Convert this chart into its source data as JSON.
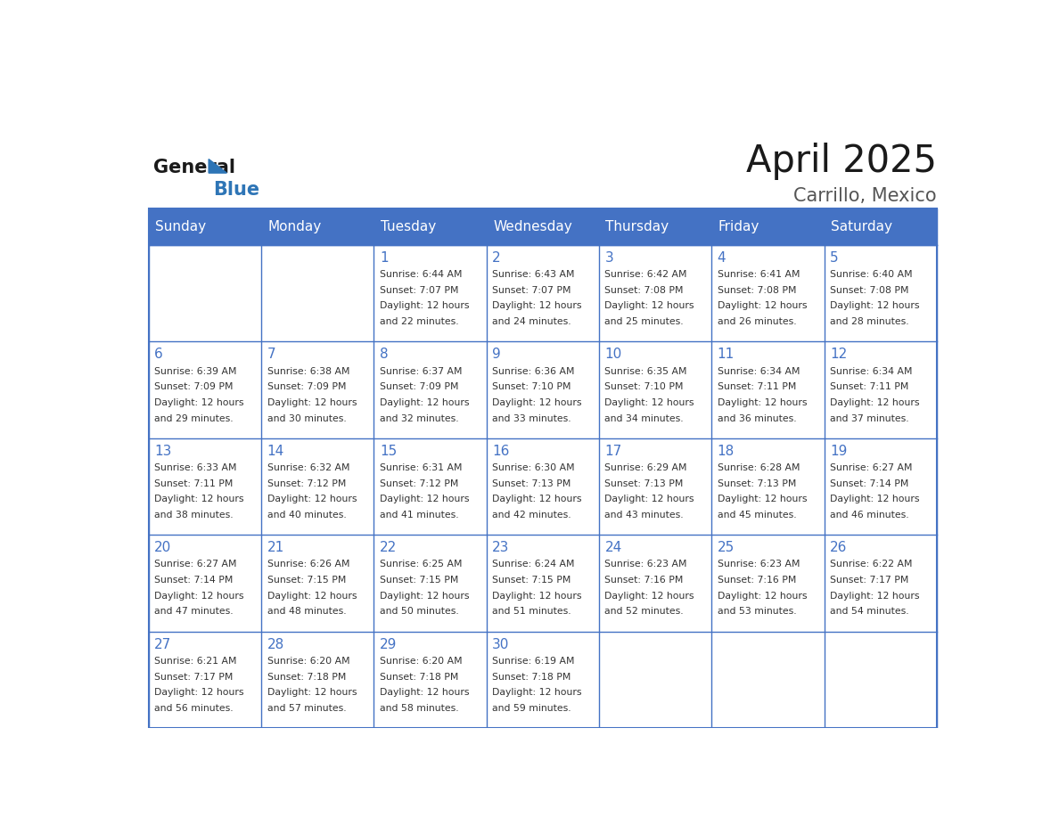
{
  "title": "April 2025",
  "subtitle": "Carrillo, Mexico",
  "header_color": "#4472C4",
  "header_text_color": "#FFFFFF",
  "border_color": "#4472C4",
  "day_number_color": "#4472C4",
  "text_color": "#333333",
  "title_color": "#1a1a1a",
  "subtitle_color": "#555555",
  "logo_black_color": "#1a1a1a",
  "logo_blue_color": "#2E75B6",
  "day_names": [
    "Sunday",
    "Monday",
    "Tuesday",
    "Wednesday",
    "Thursday",
    "Friday",
    "Saturday"
  ],
  "calendar": [
    [
      {
        "day": "",
        "sunrise": "",
        "sunset": "",
        "daylight": ""
      },
      {
        "day": "",
        "sunrise": "",
        "sunset": "",
        "daylight": ""
      },
      {
        "day": "1",
        "sunrise": "Sunrise: 6:44 AM",
        "sunset": "Sunset: 7:07 PM",
        "daylight": "Daylight: 12 hours\nand 22 minutes."
      },
      {
        "day": "2",
        "sunrise": "Sunrise: 6:43 AM",
        "sunset": "Sunset: 7:07 PM",
        "daylight": "Daylight: 12 hours\nand 24 minutes."
      },
      {
        "day": "3",
        "sunrise": "Sunrise: 6:42 AM",
        "sunset": "Sunset: 7:08 PM",
        "daylight": "Daylight: 12 hours\nand 25 minutes."
      },
      {
        "day": "4",
        "sunrise": "Sunrise: 6:41 AM",
        "sunset": "Sunset: 7:08 PM",
        "daylight": "Daylight: 12 hours\nand 26 minutes."
      },
      {
        "day": "5",
        "sunrise": "Sunrise: 6:40 AM",
        "sunset": "Sunset: 7:08 PM",
        "daylight": "Daylight: 12 hours\nand 28 minutes."
      }
    ],
    [
      {
        "day": "6",
        "sunrise": "Sunrise: 6:39 AM",
        "sunset": "Sunset: 7:09 PM",
        "daylight": "Daylight: 12 hours\nand 29 minutes."
      },
      {
        "day": "7",
        "sunrise": "Sunrise: 6:38 AM",
        "sunset": "Sunset: 7:09 PM",
        "daylight": "Daylight: 12 hours\nand 30 minutes."
      },
      {
        "day": "8",
        "sunrise": "Sunrise: 6:37 AM",
        "sunset": "Sunset: 7:09 PM",
        "daylight": "Daylight: 12 hours\nand 32 minutes."
      },
      {
        "day": "9",
        "sunrise": "Sunrise: 6:36 AM",
        "sunset": "Sunset: 7:10 PM",
        "daylight": "Daylight: 12 hours\nand 33 minutes."
      },
      {
        "day": "10",
        "sunrise": "Sunrise: 6:35 AM",
        "sunset": "Sunset: 7:10 PM",
        "daylight": "Daylight: 12 hours\nand 34 minutes."
      },
      {
        "day": "11",
        "sunrise": "Sunrise: 6:34 AM",
        "sunset": "Sunset: 7:11 PM",
        "daylight": "Daylight: 12 hours\nand 36 minutes."
      },
      {
        "day": "12",
        "sunrise": "Sunrise: 6:34 AM",
        "sunset": "Sunset: 7:11 PM",
        "daylight": "Daylight: 12 hours\nand 37 minutes."
      }
    ],
    [
      {
        "day": "13",
        "sunrise": "Sunrise: 6:33 AM",
        "sunset": "Sunset: 7:11 PM",
        "daylight": "Daylight: 12 hours\nand 38 minutes."
      },
      {
        "day": "14",
        "sunrise": "Sunrise: 6:32 AM",
        "sunset": "Sunset: 7:12 PM",
        "daylight": "Daylight: 12 hours\nand 40 minutes."
      },
      {
        "day": "15",
        "sunrise": "Sunrise: 6:31 AM",
        "sunset": "Sunset: 7:12 PM",
        "daylight": "Daylight: 12 hours\nand 41 minutes."
      },
      {
        "day": "16",
        "sunrise": "Sunrise: 6:30 AM",
        "sunset": "Sunset: 7:13 PM",
        "daylight": "Daylight: 12 hours\nand 42 minutes."
      },
      {
        "day": "17",
        "sunrise": "Sunrise: 6:29 AM",
        "sunset": "Sunset: 7:13 PM",
        "daylight": "Daylight: 12 hours\nand 43 minutes."
      },
      {
        "day": "18",
        "sunrise": "Sunrise: 6:28 AM",
        "sunset": "Sunset: 7:13 PM",
        "daylight": "Daylight: 12 hours\nand 45 minutes."
      },
      {
        "day": "19",
        "sunrise": "Sunrise: 6:27 AM",
        "sunset": "Sunset: 7:14 PM",
        "daylight": "Daylight: 12 hours\nand 46 minutes."
      }
    ],
    [
      {
        "day": "20",
        "sunrise": "Sunrise: 6:27 AM",
        "sunset": "Sunset: 7:14 PM",
        "daylight": "Daylight: 12 hours\nand 47 minutes."
      },
      {
        "day": "21",
        "sunrise": "Sunrise: 6:26 AM",
        "sunset": "Sunset: 7:15 PM",
        "daylight": "Daylight: 12 hours\nand 48 minutes."
      },
      {
        "day": "22",
        "sunrise": "Sunrise: 6:25 AM",
        "sunset": "Sunset: 7:15 PM",
        "daylight": "Daylight: 12 hours\nand 50 minutes."
      },
      {
        "day": "23",
        "sunrise": "Sunrise: 6:24 AM",
        "sunset": "Sunset: 7:15 PM",
        "daylight": "Daylight: 12 hours\nand 51 minutes."
      },
      {
        "day": "24",
        "sunrise": "Sunrise: 6:23 AM",
        "sunset": "Sunset: 7:16 PM",
        "daylight": "Daylight: 12 hours\nand 52 minutes."
      },
      {
        "day": "25",
        "sunrise": "Sunrise: 6:23 AM",
        "sunset": "Sunset: 7:16 PM",
        "daylight": "Daylight: 12 hours\nand 53 minutes."
      },
      {
        "day": "26",
        "sunrise": "Sunrise: 6:22 AM",
        "sunset": "Sunset: 7:17 PM",
        "daylight": "Daylight: 12 hours\nand 54 minutes."
      }
    ],
    [
      {
        "day": "27",
        "sunrise": "Sunrise: 6:21 AM",
        "sunset": "Sunset: 7:17 PM",
        "daylight": "Daylight: 12 hours\nand 56 minutes."
      },
      {
        "day": "28",
        "sunrise": "Sunrise: 6:20 AM",
        "sunset": "Sunset: 7:18 PM",
        "daylight": "Daylight: 12 hours\nand 57 minutes."
      },
      {
        "day": "29",
        "sunrise": "Sunrise: 6:20 AM",
        "sunset": "Sunset: 7:18 PM",
        "daylight": "Daylight: 12 hours\nand 58 minutes."
      },
      {
        "day": "30",
        "sunrise": "Sunrise: 6:19 AM",
        "sunset": "Sunset: 7:18 PM",
        "daylight": "Daylight: 12 hours\nand 59 minutes."
      },
      {
        "day": "",
        "sunrise": "",
        "sunset": "",
        "daylight": ""
      },
      {
        "day": "",
        "sunrise": "",
        "sunset": "",
        "daylight": ""
      },
      {
        "day": "",
        "sunrise": "",
        "sunset": "",
        "daylight": ""
      }
    ]
  ]
}
